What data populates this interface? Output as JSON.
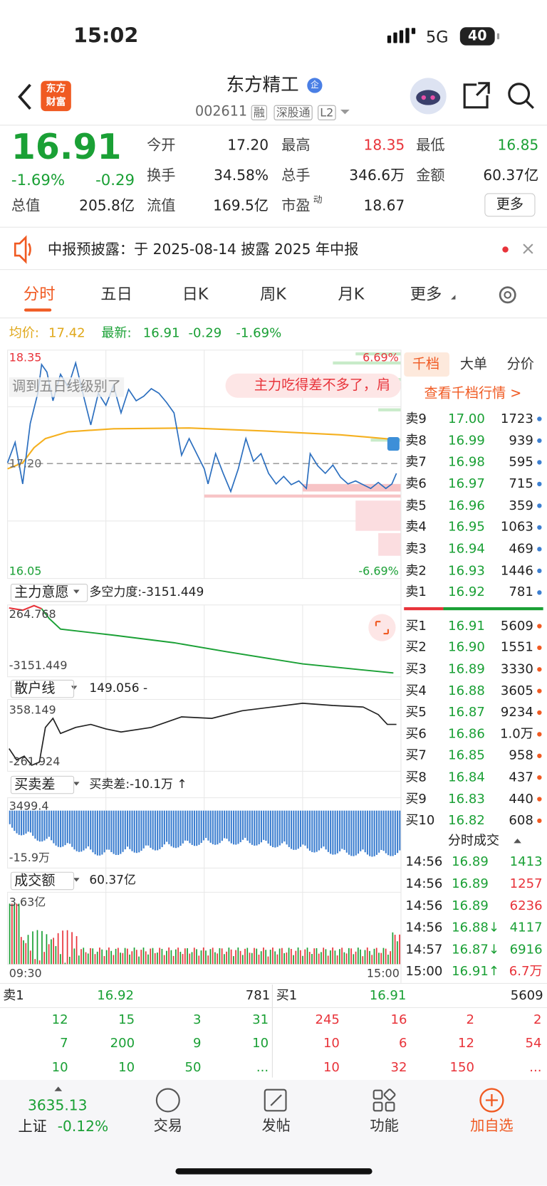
{
  "status_bar": {
    "time": "15:02",
    "network": "5G",
    "battery": "40"
  },
  "header": {
    "logo": [
      "东方",
      "财富"
    ],
    "title": "东方精工",
    "title_badge": "企",
    "code": "002611",
    "tags": [
      "融",
      "深股通",
      "L2"
    ]
  },
  "quote": {
    "price": "16.91",
    "change_percent": "-1.69%",
    "change": "-0.29",
    "stats": [
      {
        "label": "今开",
        "value": "17.20"
      },
      {
        "label": "最高",
        "value": "18.35"
      },
      {
        "label": "最低",
        "value": "16.85"
      },
      {
        "label": "换手",
        "value": "34.58%"
      },
      {
        "label": "总手",
        "value": "346.6万"
      },
      {
        "label": "金额",
        "value": "60.37亿"
      },
      {
        "label": "总值",
        "value": "205.8亿"
      },
      {
        "label": "流值",
        "value": "169.5亿"
      },
      {
        "label": "市盈",
        "label_sup": "动",
        "value": "18.67"
      }
    ],
    "more_button": "更多"
  },
  "notice": {
    "text": "中报预披露：于 2025-08-14 披露 2025 年中报"
  },
  "tabs": [
    "分时",
    "五日",
    "日K",
    "周K",
    "月K",
    "更多"
  ],
  "intraday": {
    "avg_label": "均价:",
    "avg": "17.42",
    "last_label": "最新:",
    "last": "16.91",
    "change": "-0.29",
    "change_percent": "-1.69%",
    "high": "18.35",
    "high_pct": "6.69%",
    "prev_close": "17.20",
    "low": "16.05",
    "low_pct": "-6.69%",
    "comments": [
      "调到五日线级别了",
      "主力吃得差不多了，肩"
    ],
    "panels": [
      {
        "name": "主力意愿",
        "reading": "多空力度:-3151.449",
        "top": "264.768",
        "bottom": "-3151.449"
      },
      {
        "name": "散户线",
        "reading": "149.056 -",
        "top": "358.149",
        "bottom": "-261.924"
      },
      {
        "name": "买卖差",
        "reading": "买卖差:-10.1万 ↑",
        "top": "3499.4",
        "bottom": "-15.9万"
      },
      {
        "name": "成交额",
        "reading": "60.37亿",
        "top": "3.63亿"
      }
    ],
    "time_start": "09:30",
    "time_end": "15:00"
  },
  "depth": {
    "tabs": [
      "千档",
      "大单",
      "分价"
    ],
    "link": "查看千档行情 >",
    "asks": [
      {
        "label": "卖9",
        "price": "17.00",
        "volume": "1723"
      },
      {
        "label": "卖8",
        "price": "16.99",
        "volume": "939"
      },
      {
        "label": "卖7",
        "price": "16.98",
        "volume": "595"
      },
      {
        "label": "卖6",
        "price": "16.97",
        "volume": "715"
      },
      {
        "label": "卖5",
        "price": "16.96",
        "volume": "359"
      },
      {
        "label": "卖4",
        "price": "16.95",
        "volume": "1063"
      },
      {
        "label": "卖3",
        "price": "16.94",
        "volume": "469"
      },
      {
        "label": "卖2",
        "price": "16.93",
        "volume": "1446"
      },
      {
        "label": "卖1",
        "price": "16.92",
        "volume": "781"
      }
    ],
    "bids": [
      {
        "label": "买1",
        "price": "16.91",
        "volume": "5609"
      },
      {
        "label": "买2",
        "price": "16.90",
        "volume": "1551"
      },
      {
        "label": "买3",
        "price": "16.89",
        "volume": "3330"
      },
      {
        "label": "买4",
        "price": "16.88",
        "volume": "3605"
      },
      {
        "label": "买5",
        "price": "16.87",
        "volume": "9234"
      },
      {
        "label": "买6",
        "price": "16.86",
        "volume": "1.0万"
      },
      {
        "label": "买7",
        "price": "16.85",
        "volume": "958"
      },
      {
        "label": "买8",
        "price": "16.84",
        "volume": "437"
      },
      {
        "label": "买9",
        "price": "16.83",
        "volume": "440"
      },
      {
        "label": "买10",
        "price": "16.82",
        "volume": "608"
      }
    ],
    "trades_title": "分时成交",
    "trades": [
      {
        "time": "14:56",
        "price": "16.89",
        "volume": "1413"
      },
      {
        "time": "14:56",
        "price": "16.89",
        "volume": "1257"
      },
      {
        "time": "14:56",
        "price": "16.89",
        "volume": "6236"
      },
      {
        "time": "14:56",
        "price": "16.88↓",
        "volume": "4117"
      },
      {
        "time": "14:57",
        "price": "16.87↓",
        "volume": "6916"
      },
      {
        "time": "15:00",
        "price": "16.91↑",
        "volume": "6.7万"
      }
    ]
  },
  "order_book": {
    "ask": {
      "label": "卖1",
      "price": "16.92",
      "volume": "781",
      "queue": [
        [
          12,
          15,
          3,
          31
        ],
        [
          7,
          200,
          9,
          10
        ],
        [
          10,
          10,
          50,
          "..."
        ]
      ]
    },
    "bid": {
      "label": "买1",
      "price": "16.91",
      "volume": "5609",
      "queue": [
        [
          245,
          16,
          2,
          2
        ],
        [
          10,
          6,
          12,
          54
        ],
        [
          10,
          32,
          150,
          "..."
        ]
      ]
    }
  },
  "bottom_nav": {
    "index_value": "3635.13",
    "index_name": "上证",
    "index_change": "-0.12%",
    "items": [
      "交易",
      "发帖",
      "功能",
      "加自选"
    ]
  }
}
